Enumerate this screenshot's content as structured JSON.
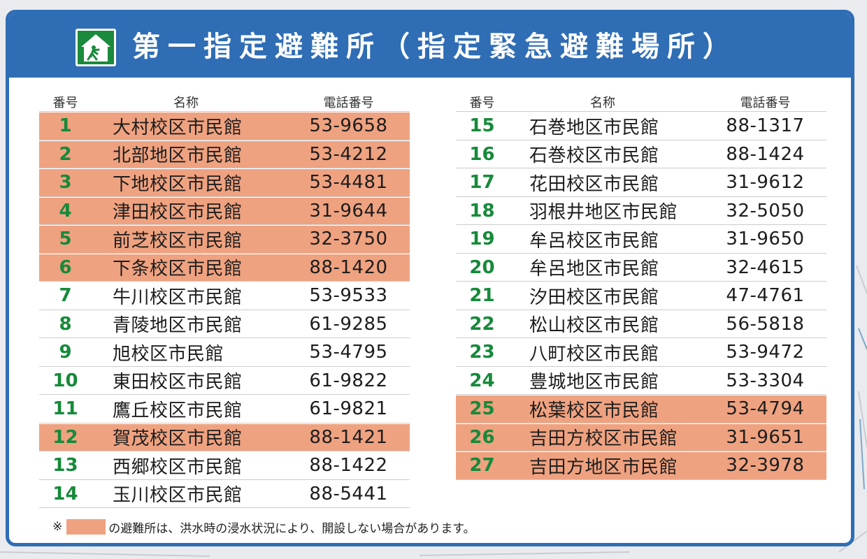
{
  "header": {
    "title": "第一指定避難所（指定緊急避難場所）",
    "icon": "shelter-icon",
    "color": "#2f6db5"
  },
  "columns": {
    "number": "番号",
    "name": "名称",
    "phone": "電話番号"
  },
  "highlight_color": "#efa280",
  "left_rows": [
    {
      "num": "1",
      "name": "大村校区市民館",
      "tel": "53-9658",
      "highlight": true
    },
    {
      "num": "2",
      "name": "北部地区市民館",
      "tel": "53-4212",
      "highlight": true
    },
    {
      "num": "3",
      "name": "下地校区市民館",
      "tel": "53-4481",
      "highlight": true
    },
    {
      "num": "4",
      "name": "津田校区市民館",
      "tel": "31-9644",
      "highlight": true
    },
    {
      "num": "5",
      "name": "前芝校区市民館",
      "tel": "32-3750",
      "highlight": true
    },
    {
      "num": "6",
      "name": "下条校区市民館",
      "tel": "88-1420",
      "highlight": true
    },
    {
      "num": "7",
      "name": "牛川校区市民館",
      "tel": "53-9533",
      "highlight": false
    },
    {
      "num": "8",
      "name": "青陵地区市民館",
      "tel": "61-9285",
      "highlight": false
    },
    {
      "num": "9",
      "name": "旭校区市民館",
      "tel": "53-4795",
      "highlight": false
    },
    {
      "num": "10",
      "name": "東田校区市民館",
      "tel": "61-9822",
      "highlight": false
    },
    {
      "num": "11",
      "name": "鷹丘校区市民館",
      "tel": "61-9821",
      "highlight": false
    },
    {
      "num": "12",
      "name": "賀茂校区市民館",
      "tel": "88-1421",
      "highlight": true
    },
    {
      "num": "13",
      "name": "西郷校区市民館",
      "tel": "88-1422",
      "highlight": false
    },
    {
      "num": "14",
      "name": "玉川校区市民館",
      "tel": "88-5441",
      "highlight": false
    }
  ],
  "right_rows": [
    {
      "num": "15",
      "name": "石巻地区市民館",
      "tel": "88-1317",
      "highlight": false
    },
    {
      "num": "16",
      "name": "石巻校区市民館",
      "tel": "88-1424",
      "highlight": false
    },
    {
      "num": "17",
      "name": "花田校区市民館",
      "tel": "31-9612",
      "highlight": false
    },
    {
      "num": "18",
      "name": "羽根井地区市民館",
      "tel": "32-5050",
      "highlight": false
    },
    {
      "num": "19",
      "name": "牟呂校区市民館",
      "tel": "31-9650",
      "highlight": false
    },
    {
      "num": "20",
      "name": "牟呂地区市民館",
      "tel": "32-4615",
      "highlight": false
    },
    {
      "num": "21",
      "name": "汐田校区市民館",
      "tel": "47-4761",
      "highlight": false
    },
    {
      "num": "22",
      "name": "松山校区市民館",
      "tel": "56-5818",
      "highlight": false
    },
    {
      "num": "23",
      "name": "八町校区市民館",
      "tel": "53-9472",
      "highlight": false
    },
    {
      "num": "24",
      "name": "豊城地区市民館",
      "tel": "53-3304",
      "highlight": false
    },
    {
      "num": "25",
      "name": "松葉校区市民館",
      "tel": "53-4794",
      "highlight": true
    },
    {
      "num": "26",
      "name": "吉田方校区市民館",
      "tel": "31-9651",
      "highlight": true
    },
    {
      "num": "27",
      "name": "吉田方地区市民館",
      "tel": "32-3978",
      "highlight": true
    }
  ],
  "note": {
    "prefix": "※",
    "text": "の避難所は、洪水時の浸水状況により、開設しない場合があります。"
  }
}
